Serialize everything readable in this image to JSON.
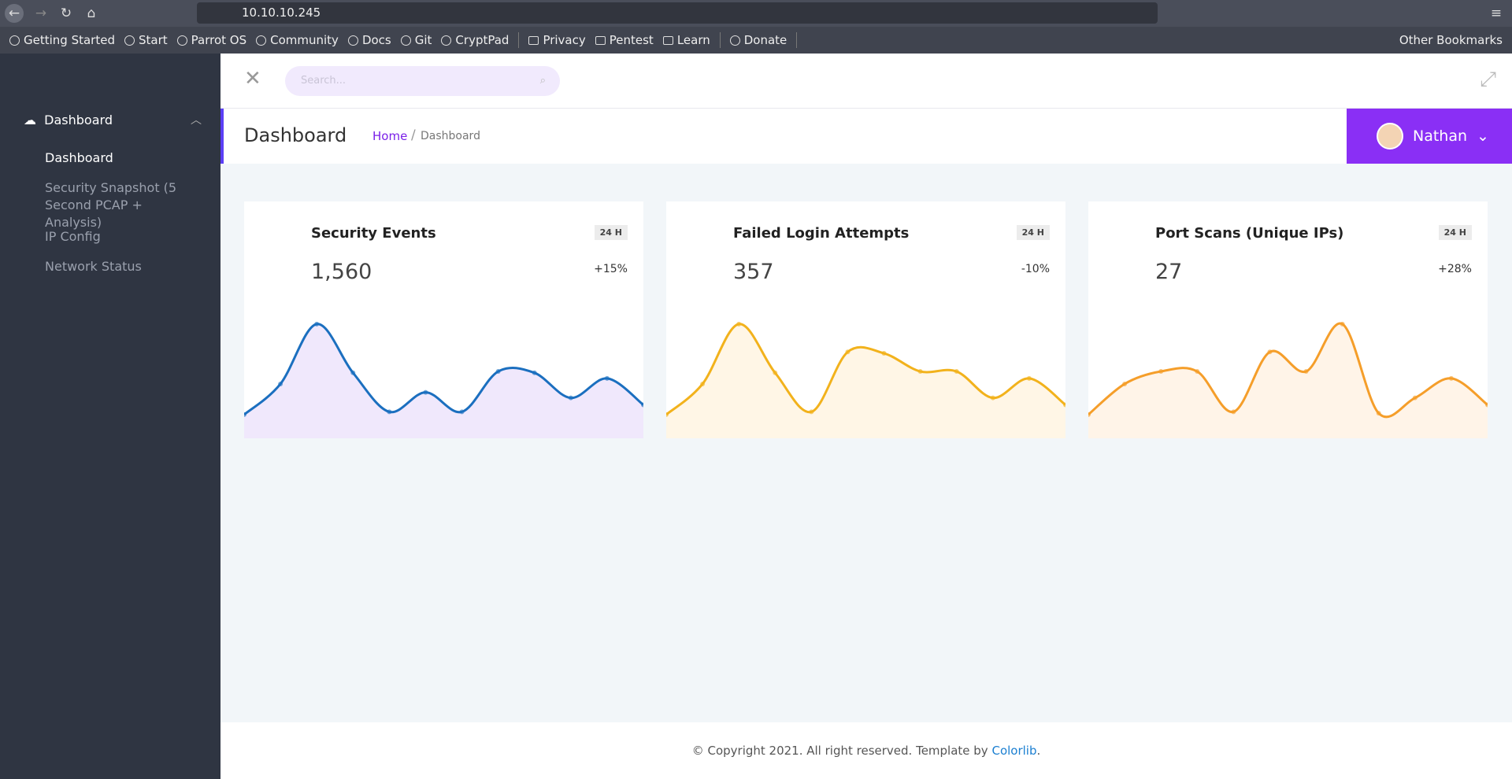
{
  "browser": {
    "url": "10.10.10.245",
    "bookmarks": [
      "Getting Started",
      "Start",
      "Parrot OS",
      "Community",
      "Docs",
      "Git",
      "CryptPad",
      "Privacy",
      "Pentest",
      "Learn",
      "Donate"
    ],
    "other_bookmarks": "Other Bookmarks"
  },
  "sidebar": {
    "section": "Dashboard",
    "items": [
      "Dashboard",
      "Security Snapshot (5 Second PCAP + Analysis)",
      "IP Config",
      "Network Status"
    ]
  },
  "topbar": {
    "search_placeholder": "Search..."
  },
  "header": {
    "title": "Dashboard",
    "breadcrumb": [
      "Home",
      "Dashboard"
    ],
    "user": "Nathan"
  },
  "cards": [
    {
      "title": "Security Events",
      "badge": "24 H",
      "value": "1,560",
      "change": "+15%",
      "chart": {
        "type": "area",
        "values": [
          17,
          39,
          82,
          47,
          19,
          33,
          19,
          48,
          47,
          29,
          43,
          24
        ],
        "ylim": [
          0,
          100
        ],
        "color": "#1b6fbf",
        "fill": "#f0e8fc"
      }
    },
    {
      "title": "Failed Login Attempts",
      "badge": "24 H",
      "value": "357",
      "change": "-10%",
      "chart": {
        "type": "area",
        "values": [
          17,
          39,
          82,
          47,
          19,
          62,
          61,
          48,
          48,
          29,
          43,
          24
        ],
        "ylim": [
          0,
          100
        ],
        "color": "#f2b21c",
        "fill": "#fff6e6"
      }
    },
    {
      "title": "Port Scans (Unique IPs)",
      "badge": "24 H",
      "value": "27",
      "change": "+28%",
      "chart": {
        "type": "area",
        "values": [
          17,
          39,
          48,
          48,
          19,
          62,
          48,
          82,
          18,
          29,
          43,
          24
        ],
        "ylim": [
          0,
          100
        ],
        "color": "#f59e2a",
        "fill": "#fff4e8"
      }
    }
  ],
  "footer": {
    "text": "© Copyright 2021. All right reserved. Template by",
    "link": "Colorlib",
    "end": "."
  }
}
